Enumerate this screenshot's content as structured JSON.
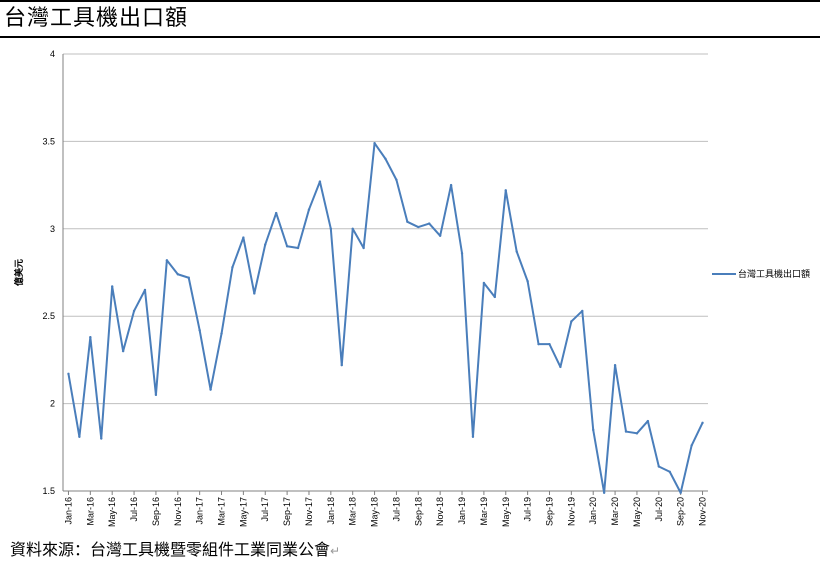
{
  "page": {
    "title": "台灣工具機出口額",
    "source": "資料來源：台灣工具機暨零組件工業同業公會",
    "source_mark": "↵"
  },
  "colors": {
    "line": "#4A7EBB",
    "grid": "#BFBFBF",
    "axis": "#000000"
  },
  "chart_data": {
    "type": "line",
    "title": "",
    "xlabel": "",
    "ylabel": "億美元",
    "ylim": [
      1.5,
      4
    ],
    "yticks": [
      "1.5",
      "2",
      "2.5",
      "3",
      "3.5",
      "4"
    ],
    "grid": true,
    "legend_position": "right",
    "x": [
      "Jan-16",
      "Feb-16",
      "Mar-16",
      "Apr-16",
      "May-16",
      "Jun-16",
      "Jul-16",
      "Aug-16",
      "Sep-16",
      "Oct-16",
      "Nov-16",
      "Dec-16",
      "Jan-17",
      "Feb-17",
      "Mar-17",
      "Apr-17",
      "May-17",
      "Jun-17",
      "Jul-17",
      "Aug-17",
      "Sep-17",
      "Oct-17",
      "Nov-17",
      "Dec-17",
      "Jan-18",
      "Feb-18",
      "Mar-18",
      "Apr-18",
      "May-18",
      "Jun-18",
      "Jul-18",
      "Aug-18",
      "Sep-18",
      "Oct-18",
      "Nov-18",
      "Dec-18",
      "Jan-19",
      "Feb-19",
      "Mar-19",
      "Apr-19",
      "May-19",
      "Jun-19",
      "Jul-19",
      "Aug-19",
      "Sep-19",
      "Oct-19",
      "Nov-19",
      "Dec-19",
      "Jan-20",
      "Feb-20",
      "Mar-20",
      "Apr-20",
      "May-20",
      "Jun-20",
      "Jul-20",
      "Aug-20",
      "Sep-20",
      "Oct-20",
      "Nov-20"
    ],
    "xtick_labels": [
      "Jan-16",
      "Mar-16",
      "May-16",
      "Jul-16",
      "Sep-16",
      "Nov-16",
      "Jan-17",
      "Mar-17",
      "May-17",
      "Jul-17",
      "Sep-17",
      "Nov-17",
      "Jan-18",
      "Mar-18",
      "May-18",
      "Jul-18",
      "Sep-18",
      "Nov-18",
      "Jan-19",
      "Mar-19",
      "May-19",
      "Jul-19",
      "Sep-19",
      "Nov-19",
      "Jan-20",
      "Mar-20",
      "May-20",
      "Jul-20",
      "Sep-20",
      "Nov-20"
    ],
    "series": [
      {
        "name": "台灣工具機出口額",
        "values": [
          2.17,
          1.81,
          2.38,
          1.8,
          2.67,
          2.3,
          2.53,
          2.65,
          2.05,
          2.82,
          2.74,
          2.72,
          2.42,
          2.08,
          2.4,
          2.78,
          2.95,
          2.63,
          2.91,
          3.09,
          2.9,
          2.89,
          3.11,
          3.27,
          3.0,
          2.22,
          3.0,
          2.89,
          3.49,
          3.4,
          3.28,
          3.04,
          3.01,
          3.03,
          2.96,
          3.25,
          2.86,
          1.81,
          2.69,
          2.61,
          3.22,
          2.87,
          2.7,
          2.34,
          2.34,
          2.21,
          2.47,
          2.53,
          1.85,
          1.49,
          2.22,
          1.84,
          1.83,
          1.9,
          1.64,
          1.61,
          1.49,
          1.76,
          1.89
        ]
      }
    ]
  }
}
